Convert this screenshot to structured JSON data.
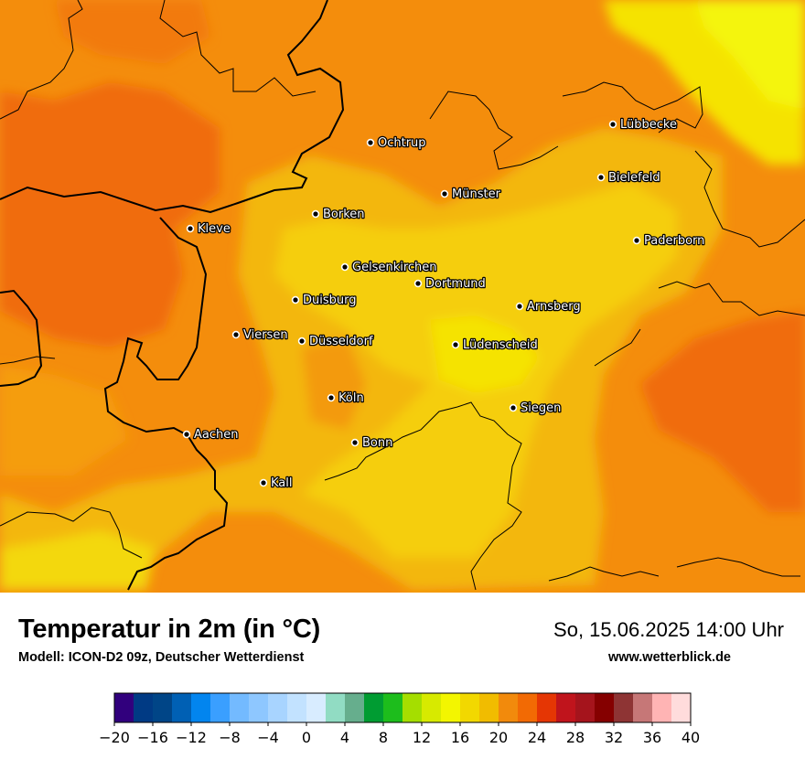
{
  "header": {
    "title": "Temperatur in 2m (in °C)",
    "subtitle": "Modell: ICON-D2 09z, Deutscher Wetterdienst",
    "datetime": "So, 15.06.2025 14:00 Uhr",
    "website": "www.wetterblick.de"
  },
  "map": {
    "cities": [
      {
        "name": "Lübbecke"
      },
      {
        "name": "Ochtrup"
      },
      {
        "name": "Bielefeld"
      },
      {
        "name": "Münster"
      },
      {
        "name": "Borken"
      },
      {
        "name": "Kleve"
      },
      {
        "name": "Paderborn"
      },
      {
        "name": "Gelsenkirchen"
      },
      {
        "name": "Dortmund"
      },
      {
        "name": "Duisburg"
      },
      {
        "name": "Arnsberg"
      },
      {
        "name": "Viersen"
      },
      {
        "name": "Düsseldorf"
      },
      {
        "name": "Lüdenscheid"
      },
      {
        "name": "Köln"
      },
      {
        "name": "Siegen"
      },
      {
        "name": "Aachen"
      },
      {
        "name": "Bonn"
      },
      {
        "name": "Kall"
      }
    ]
  },
  "legend": {
    "min": -20,
    "max": 40,
    "step": 2,
    "tick_labels": [
      "−20",
      "−16",
      "−12",
      "−8",
      "−4",
      "0",
      "4",
      "8",
      "12",
      "16",
      "20",
      "24",
      "28",
      "32",
      "36",
      "40"
    ],
    "colors": [
      "#31007d",
      "#003a84",
      "#004587",
      "#0060b4",
      "#0285ef",
      "#3a9fff",
      "#73baff",
      "#8ec7ff",
      "#a8d4ff",
      "#c2e2ff",
      "#d8ecff",
      "#91dcc3",
      "#66ae8d",
      "#009c32",
      "#1dbd1c",
      "#a5de00",
      "#d7ea00",
      "#f3f600",
      "#f2d800",
      "#f1bc00",
      "#f28a0c",
      "#f26a04",
      "#e53604",
      "#c0141c",
      "#a5141c",
      "#850000",
      "#8e3434",
      "#c67777",
      "#ffb4b4",
      "#ffdcdc"
    ]
  }
}
